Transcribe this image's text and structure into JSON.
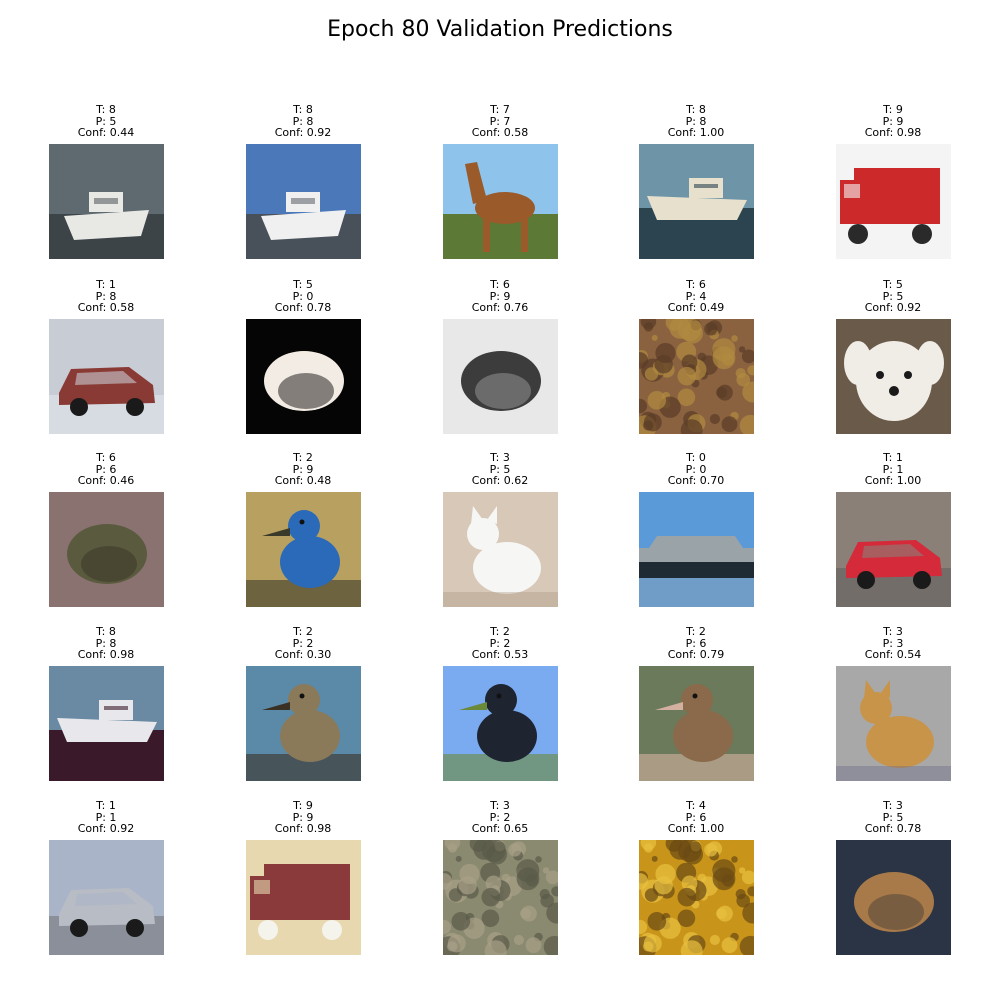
{
  "title": "Epoch 80 Validation Predictions",
  "predictions": [
    {
      "true": "T: 8",
      "pred": "P: 5",
      "conf": "Conf: 0.44",
      "scene": "boat",
      "colors": [
        "#5f6a70",
        "#e8e8e4",
        "#3c4448"
      ]
    },
    {
      "true": "T: 8",
      "pred": "P: 8",
      "conf": "Conf: 0.92",
      "scene": "boat",
      "colors": [
        "#4a78b8",
        "#f0f0f0",
        "#48505a"
      ]
    },
    {
      "true": "T: 7",
      "pred": "P: 7",
      "conf": "Conf: 0.58",
      "scene": "horse",
      "colors": [
        "#8ec4ec",
        "#9a5a2a",
        "#5c7a36"
      ]
    },
    {
      "true": "T: 8",
      "pred": "P: 8",
      "conf": "Conf: 1.00",
      "scene": "ship",
      "colors": [
        "#6e94a8",
        "#e6e0cc",
        "#2c4450"
      ]
    },
    {
      "true": "T: 9",
      "pred": "P: 9",
      "conf": "Conf: 0.98",
      "scene": "truck",
      "colors": [
        "#f4f4f4",
        "#cc2a2a",
        "#2a2a2a"
      ]
    },
    {
      "true": "T: 1",
      "pred": "P: 8",
      "conf": "Conf: 0.58",
      "scene": "car",
      "colors": [
        "#c8ccd4",
        "#8a3a34",
        "#e6ecf2"
      ]
    },
    {
      "true": "T: 5",
      "pred": "P: 0",
      "conf": "Conf: 0.78",
      "scene": "blob",
      "colors": [
        "#050505",
        "#f2ece4",
        "#3a3634"
      ]
    },
    {
      "true": "T: 6",
      "pred": "P: 9",
      "conf": "Conf: 0.76",
      "scene": "blob",
      "colors": [
        "#e8e8e8",
        "#3c3c3c",
        "#8a8a8a"
      ]
    },
    {
      "true": "T: 6",
      "pred": "P: 4",
      "conf": "Conf: 0.49",
      "scene": "texture",
      "colors": [
        "#8a6240",
        "#b08a40",
        "#5a3c26"
      ]
    },
    {
      "true": "T: 5",
      "pred": "P: 5",
      "conf": "Conf: 0.92",
      "scene": "dog",
      "colors": [
        "#6a5a4a",
        "#f0ece6",
        "#1a1a1a"
      ]
    },
    {
      "true": "T: 6",
      "pred": "P: 6",
      "conf": "Conf: 0.46",
      "scene": "blob",
      "colors": [
        "#8a7270",
        "#5a5a3e",
        "#3e3a2c"
      ]
    },
    {
      "true": "T: 2",
      "pred": "P: 9",
      "conf": "Conf: 0.48",
      "scene": "bird",
      "colors": [
        "#b8a060",
        "#2a6ab8",
        "#3a3a2a"
      ]
    },
    {
      "true": "T: 3",
      "pred": "P: 5",
      "conf": "Conf: 0.62",
      "scene": "cat",
      "colors": [
        "#d8c8b8",
        "#f6f6f4",
        "#b09884"
      ]
    },
    {
      "true": "T: 0",
      "pred": "P: 0",
      "conf": "Conf: 0.70",
      "scene": "plane",
      "colors": [
        "#5a9ad8",
        "#1e2a34",
        "#9aa4a8"
      ]
    },
    {
      "true": "T: 1",
      "pred": "P: 1",
      "conf": "Conf: 1.00",
      "scene": "car",
      "colors": [
        "#8a8078",
        "#d42a3a",
        "#5a5a5a"
      ]
    },
    {
      "true": "T: 8",
      "pred": "P: 8",
      "conf": "Conf: 0.98",
      "scene": "ship",
      "colors": [
        "#6a8aa4",
        "#e8e8ec",
        "#3a1a2a"
      ]
    },
    {
      "true": "T: 2",
      "pred": "P: 2",
      "conf": "Conf: 0.30",
      "scene": "bird",
      "colors": [
        "#5a8aa8",
        "#8a7a5a",
        "#3a3024"
      ]
    },
    {
      "true": "T: 2",
      "pred": "P: 2",
      "conf": "Conf: 0.53",
      "scene": "bird",
      "colors": [
        "#7aaaf0",
        "#1e2430",
        "#6a8a3a"
      ]
    },
    {
      "true": "T: 2",
      "pred": "P: 6",
      "conf": "Conf: 0.79",
      "scene": "bird",
      "colors": [
        "#6a7a5a",
        "#8a6a4a",
        "#d4b0a0"
      ]
    },
    {
      "true": "T: 3",
      "pred": "P: 3",
      "conf": "Conf: 0.54",
      "scene": "cat",
      "colors": [
        "#a8a8a8",
        "#c8944a",
        "#6a6a8a"
      ]
    },
    {
      "true": "T: 1",
      "pred": "P: 1",
      "conf": "Conf: 0.92",
      "scene": "car",
      "colors": [
        "#aab4c8",
        "#b8bcc4",
        "#6a6a6a"
      ]
    },
    {
      "true": "T: 9",
      "pred": "P: 9",
      "conf": "Conf: 0.98",
      "scene": "truck",
      "colors": [
        "#e8d8b0",
        "#8a3a3a",
        "#f4f4ec"
      ]
    },
    {
      "true": "T: 3",
      "pred": "P: 2",
      "conf": "Conf: 0.65",
      "scene": "texture",
      "colors": [
        "#8a8a70",
        "#5a5a48",
        "#a8a088"
      ]
    },
    {
      "true": "T: 4",
      "pred": "P: 6",
      "conf": "Conf: 1.00",
      "scene": "texture",
      "colors": [
        "#c8941a",
        "#6a4a14",
        "#e8c040"
      ]
    },
    {
      "true": "T: 3",
      "pred": "P: 5",
      "conf": "Conf: 0.78",
      "scene": "blob",
      "colors": [
        "#2a3444",
        "#a87a4a",
        "#5a4a3a"
      ]
    }
  ]
}
